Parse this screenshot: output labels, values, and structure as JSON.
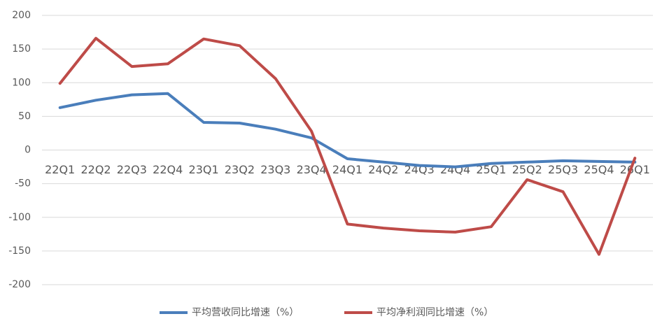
{
  "chart_data": {
    "type": "line",
    "categories": [
      "22Q1",
      "22Q2",
      "22Q3",
      "22Q4",
      "23Q1",
      "23Q2",
      "23Q3",
      "23Q4",
      "24Q1",
      "24Q2",
      "24Q3",
      "24Q4",
      "25Q1",
      "25Q2",
      "25Q3",
      "25Q4",
      "26Q1"
    ],
    "series": [
      {
        "name": "平均营收同比增速（%）",
        "color": "#4a7ebb",
        "values": [
          63,
          74,
          82,
          84,
          41,
          40,
          31,
          18,
          -13,
          -18,
          -23,
          -25,
          -20,
          -18,
          -16,
          -17,
          -18
        ]
      },
      {
        "name": "平均净利润同比增速（%）",
        "color": "#be4b48",
        "values": [
          99,
          166,
          124,
          128,
          165,
          155,
          106,
          28,
          -110,
          -116,
          -120,
          -122,
          -114,
          -44,
          -62,
          -155,
          -12
        ]
      }
    ],
    "ylim": [
      -200,
      200
    ],
    "yticks": [
      -200,
      -150,
      -100,
      -50,
      0,
      50,
      100,
      150,
      200
    ],
    "grid": true,
    "legend": "bottom"
  }
}
